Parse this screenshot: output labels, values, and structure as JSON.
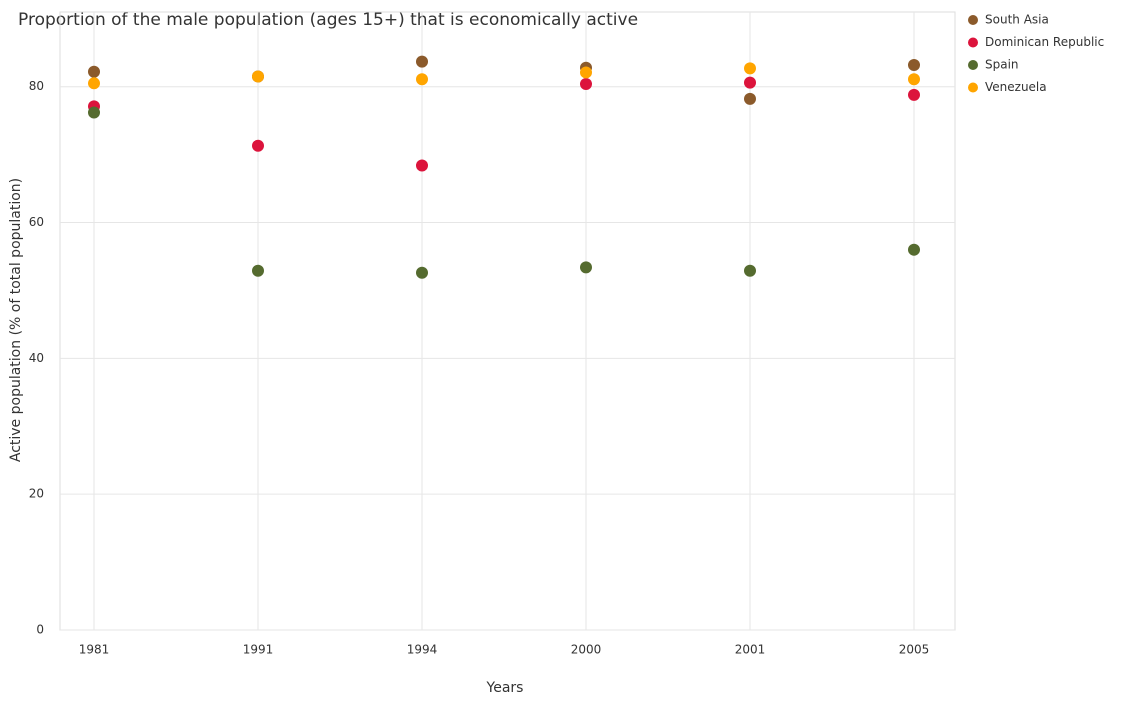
{
  "chart_data": {
    "type": "scatter",
    "title": "Proportion of the male population (ages 15+) that is economically active",
    "x_label": "Years",
    "y_label": "Active population (% of total population)",
    "categories": [
      "1981",
      "1991",
      "1994",
      "2000",
      "2001",
      "2005"
    ],
    "series": [
      {
        "name": "South Asia",
        "color": "#8b5a2b",
        "values": [
          82.2,
          81.5,
          83.7,
          82.8,
          78.2,
          83.2
        ]
      },
      {
        "name": "Dominican Republic",
        "color": "#dc143c",
        "values": [
          77.1,
          71.3,
          68.4,
          80.4,
          80.6,
          78.8
        ]
      },
      {
        "name": "Spain",
        "color": "#556b2f",
        "values": [
          76.2,
          52.9,
          52.6,
          53.4,
          52.9,
          56.0
        ]
      },
      {
        "name": "Venezuela",
        "color": "#ffa500",
        "values": [
          80.5,
          81.5,
          81.1,
          82.1,
          82.7,
          81.1
        ]
      }
    ],
    "ylim": [
      0,
      91
    ],
    "yticks": [
      0,
      20,
      40,
      60,
      80
    ],
    "grid": true
  }
}
